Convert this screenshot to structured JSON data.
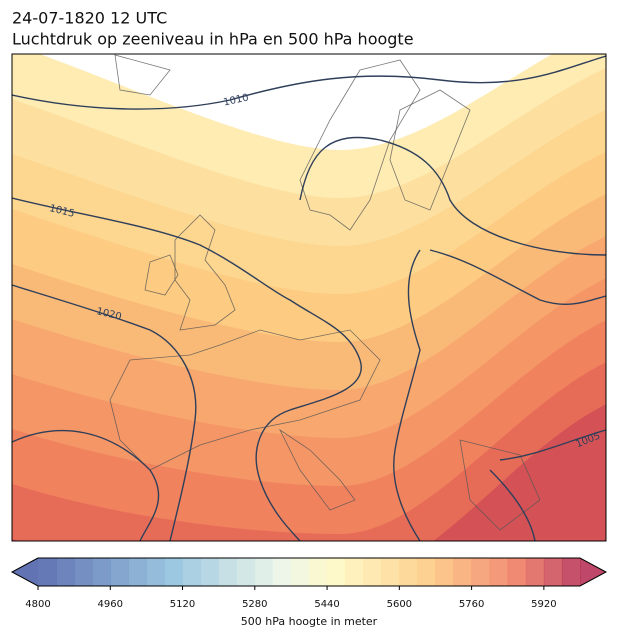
{
  "title": "24-07-1820 12 UTC",
  "subtitle": "Luchtdruk op zeeniveau in hPa en 500 hPa hoogte",
  "isobar_labels": [
    1010,
    1015,
    1020,
    1005
  ],
  "colorbar": {
    "lim": [
      4800,
      6000
    ],
    "ticks": [
      4800,
      4960,
      5120,
      5280,
      5440,
      5600,
      5760,
      5920
    ],
    "label": "500 hPa hoogte in meter"
  }
}
